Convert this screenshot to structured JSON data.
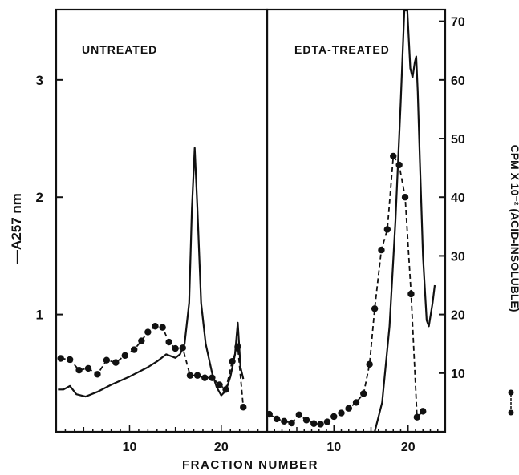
{
  "chart_data": [
    {
      "type": "line",
      "panel_label": "UNTREATED",
      "xlabel": "FRACTION NUMBER",
      "ylabel_left": "—A257 nm",
      "ylabel_right": "CPM X 10⁻² (ACID-INSOLUBLE)",
      "xlim": [
        2,
        25
      ],
      "ylim_left": [
        0,
        3.6
      ],
      "ylim_right": [
        0,
        72
      ],
      "x_ticks": [
        10,
        20
      ],
      "y_ticks_left": [
        1,
        2,
        3
      ],
      "y_ticks_right": [
        10,
        20,
        30,
        40,
        50,
        60,
        70
      ],
      "series": [
        {
          "style": "solid",
          "axis": "left",
          "points": [
            [
              2.2,
              0.36
            ],
            [
              2.8,
              0.36
            ],
            [
              3.5,
              0.39
            ],
            [
              4.2,
              0.32
            ],
            [
              5.2,
              0.3
            ],
            [
              6.5,
              0.34
            ],
            [
              8,
              0.4
            ],
            [
              10,
              0.47
            ],
            [
              12,
              0.55
            ],
            [
              13,
              0.6
            ],
            [
              14,
              0.66
            ],
            [
              15,
              0.63
            ],
            [
              15.5,
              0.66
            ],
            [
              16,
              0.75
            ],
            [
              16.5,
              1.1
            ],
            [
              16.8,
              1.9
            ],
            [
              17.1,
              2.42
            ],
            [
              17.4,
              1.9
            ],
            [
              17.8,
              1.1
            ],
            [
              18.3,
              0.75
            ],
            [
              19,
              0.5
            ],
            [
              19.5,
              0.38
            ],
            [
              20,
              0.31
            ],
            [
              20.5,
              0.35
            ],
            [
              21,
              0.47
            ],
            [
              21.5,
              0.66
            ],
            [
              21.8,
              0.93
            ],
            [
              22.1,
              0.55
            ],
            [
              22.4,
              0.45
            ]
          ]
        },
        {
          "style": "dashed-markers",
          "axis": "right",
          "points": [
            [
              2.5,
              12.5
            ],
            [
              3.5,
              12.3
            ],
            [
              4.5,
              10.5
            ],
            [
              5.5,
              10.8
            ],
            [
              6.5,
              9.8
            ],
            [
              7.5,
              12.2
            ],
            [
              8.5,
              11.8
            ],
            [
              9.5,
              13
            ],
            [
              10.5,
              14
            ],
            [
              11.3,
              15.5
            ],
            [
              12,
              17
            ],
            [
              12.8,
              18
            ],
            [
              13.6,
              17.8
            ],
            [
              14.3,
              15.3
            ],
            [
              15,
              14.2
            ],
            [
              15.8,
              14.3
            ],
            [
              16.6,
              9.6
            ],
            [
              17.4,
              9.6
            ],
            [
              18.2,
              9.2
            ],
            [
              19,
              9.2
            ],
            [
              19.8,
              8
            ],
            [
              20.5,
              7.2
            ],
            [
              21.2,
              12
            ],
            [
              21.8,
              14.5
            ],
            [
              22.4,
              4.2
            ]
          ]
        }
      ]
    },
    {
      "type": "line",
      "panel_label": "EDTA-TREATED",
      "xlim": [
        1,
        25
      ],
      "x_ticks": [
        10,
        20
      ],
      "series": [
        {
          "style": "solid",
          "axis": "left",
          "points": [
            [
              15.5,
              0
            ],
            [
              16.5,
              0.25
            ],
            [
              17.5,
              0.9
            ],
            [
              18.3,
              1.8
            ],
            [
              19,
              2.8
            ],
            [
              19.5,
              3.7
            ],
            [
              19.9,
              3.7
            ],
            [
              20.3,
              3.1
            ],
            [
              20.6,
              3.02
            ],
            [
              20.9,
              3.15
            ],
            [
              21.1,
              3.2
            ],
            [
              21.3,
              2.9
            ],
            [
              21.6,
              2.3
            ],
            [
              22,
              1.5
            ],
            [
              22.5,
              0.95
            ],
            [
              22.8,
              0.9
            ],
            [
              23.3,
              1.1
            ],
            [
              23.6,
              1.25
            ]
          ]
        },
        {
          "style": "dashed-markers",
          "axis": "right",
          "points": [
            [
              1.3,
              3
            ],
            [
              2.3,
              2.2
            ],
            [
              3.3,
              1.8
            ],
            [
              4.3,
              1.5
            ],
            [
              5.3,
              2.9
            ],
            [
              6.3,
              2
            ],
            [
              7.3,
              1.4
            ],
            [
              8.2,
              1.3
            ],
            [
              9.1,
              1.7
            ],
            [
              10,
              2.6
            ],
            [
              11,
              3.2
            ],
            [
              12,
              4
            ],
            [
              13,
              5
            ],
            [
              14,
              6.5
            ],
            [
              14.8,
              11.5
            ],
            [
              15.5,
              21
            ],
            [
              16.4,
              31
            ],
            [
              17.2,
              34.5
            ],
            [
              18,
              47
            ],
            [
              18.8,
              45.5
            ],
            [
              19.6,
              40
            ],
            [
              20.4,
              23.5
            ],
            [
              21.2,
              2.5
            ],
            [
              22,
              3.5
            ]
          ]
        }
      ]
    }
  ]
}
